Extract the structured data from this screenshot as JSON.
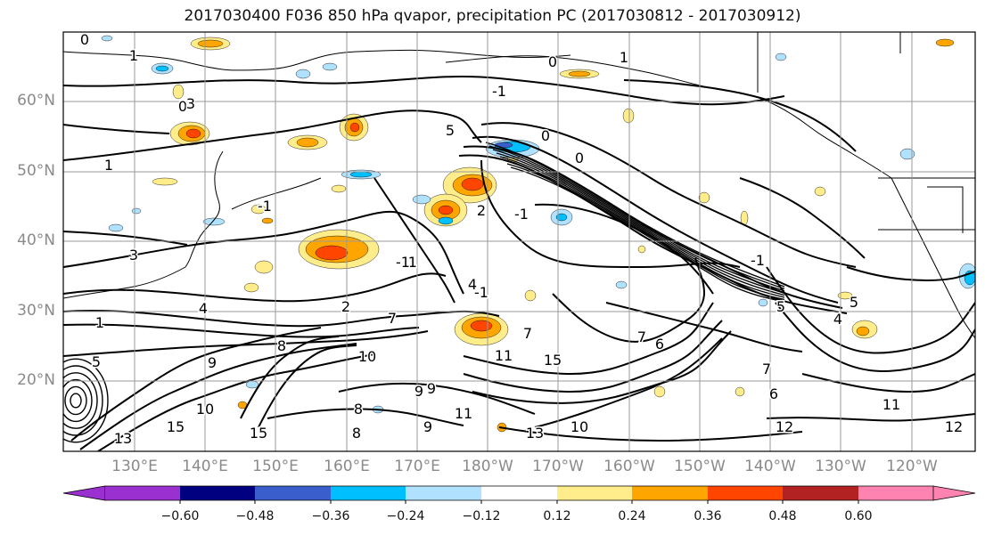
{
  "title": "2017030400 F036 850 hPa qvapor, precipitation PC (2017030812 - 2017030912)",
  "map": {
    "lat_labels": [
      "60°N",
      "50°N",
      "40°N",
      "30°N",
      "20°N"
    ],
    "lon_labels": [
      "130°E",
      "140°E",
      "150°E",
      "160°E",
      "170°E",
      "180°W",
      "170°W",
      "160°W",
      "150°W",
      "140°W",
      "130°W",
      "120°W"
    ],
    "contour_labels": [
      "0",
      "1",
      "0",
      "0",
      "1",
      "-1",
      "-1",
      "-1",
      "0",
      "5",
      "1",
      "-1",
      "-1",
      "-1",
      "2",
      "2",
      "3",
      "4",
      "1",
      "8",
      "9",
      "10",
      "7",
      "7",
      "5",
      "5",
      "4",
      "0",
      "-1",
      "3",
      "8",
      "9",
      "7",
      "6",
      "7",
      "6",
      "12",
      "12",
      "11",
      "11",
      "13",
      "13",
      "15",
      "11",
      "9",
      "10",
      "8",
      "9",
      "10",
      "15",
      "15",
      "5",
      "4"
    ]
  },
  "colorbar": {
    "ticks": [
      "−0.60",
      "−0.48",
      "−0.36",
      "−0.24",
      "−0.12",
      "0.12",
      "0.24",
      "0.36",
      "0.48",
      "0.60"
    ],
    "colors": [
      "#9b30d0",
      "#000080",
      "#3a5fcd",
      "#00bfff",
      "#b0e2ff",
      "#ffffff",
      "#ffec8b",
      "#ffa500",
      "#ff4500",
      "#b22222",
      "#ff83b0"
    ]
  }
}
